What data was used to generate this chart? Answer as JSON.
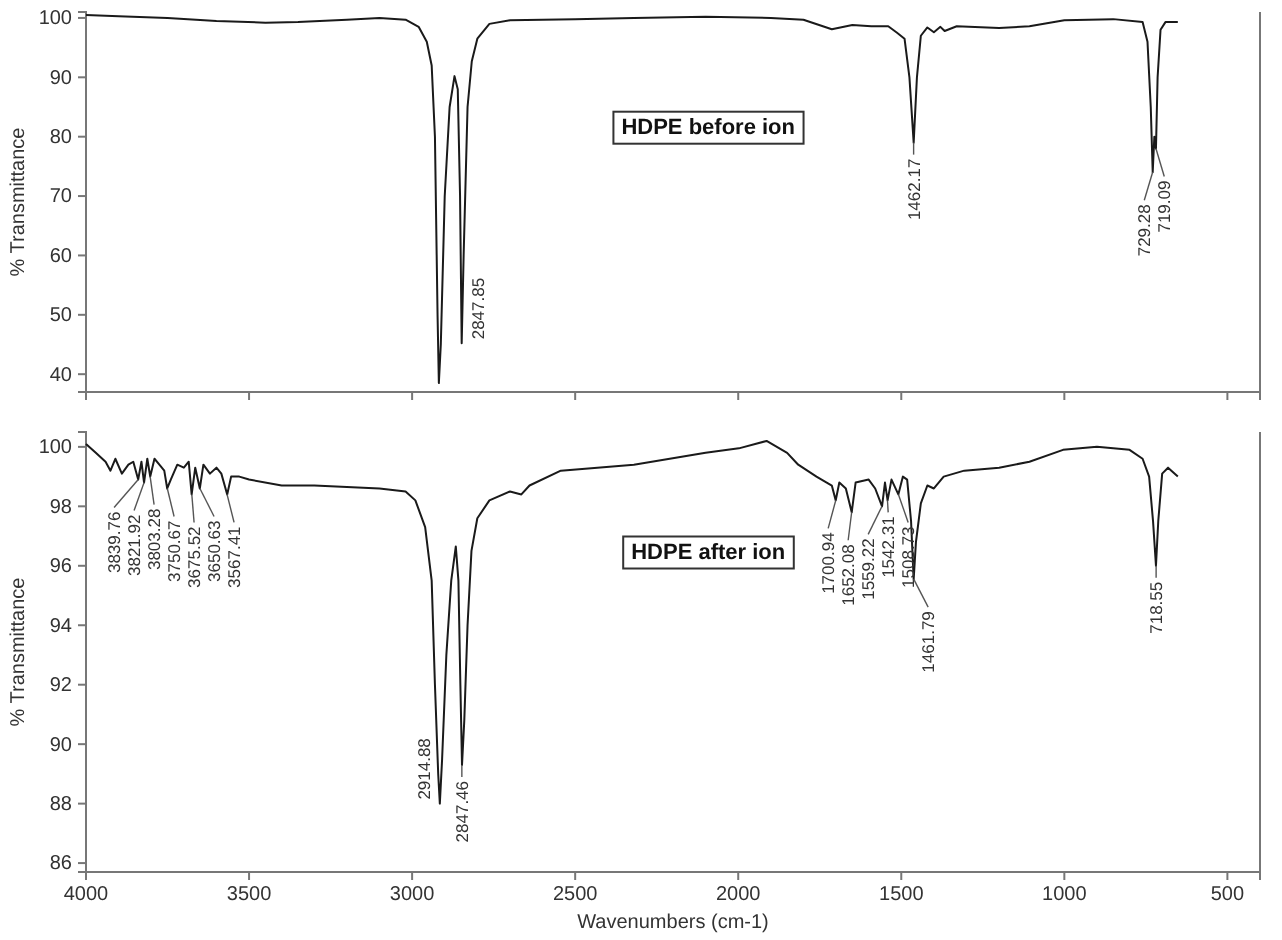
{
  "chart_data": [
    {
      "type": "line",
      "ylabel": "% Transmittance",
      "xlim": [
        4000,
        400
      ],
      "ylim": [
        37,
        101
      ],
      "xticks": [
        4000,
        3500,
        3000,
        2500,
        2000,
        1500,
        1000,
        500
      ],
      "yticks": [
        40,
        50,
        60,
        70,
        80,
        90,
        100
      ],
      "tick_labels": "y",
      "color": "#1a1a1a",
      "x": [
        4000,
        3900,
        3750,
        3600,
        3450,
        3350,
        3200,
        3100,
        3020,
        2980,
        2955,
        2940,
        2930,
        2922,
        2918,
        2912,
        2900,
        2885,
        2870,
        2860,
        2853,
        2848,
        2842,
        2830,
        2817,
        2800,
        2763,
        2700,
        2500,
        2320,
        2100,
        1900,
        1800,
        1713,
        1650,
        1592,
        1540,
        1513,
        1490,
        1475,
        1462,
        1452,
        1440,
        1420,
        1400,
        1380,
        1367,
        1330,
        1200,
        1107,
        1000,
        850,
        760,
        745,
        735,
        729,
        724,
        719,
        714,
        705,
        690,
        652
      ],
      "values": [
        100.5,
        100.3,
        100.0,
        99.5,
        99.2,
        99.3,
        99.7,
        100.0,
        99.7,
        98.5,
        96,
        92,
        80,
        50,
        38.5,
        45,
        70,
        85,
        90.2,
        88,
        70,
        45.2,
        60,
        85,
        92.7,
        96.5,
        99,
        99.6,
        99.8,
        100,
        100.2,
        100,
        99.7,
        98.1,
        98.8,
        98.6,
        98.6,
        97.5,
        96.5,
        90,
        79,
        90,
        97.0,
        98.4,
        97.6,
        98.5,
        97.8,
        98.6,
        98.3,
        98.6,
        99.6,
        99.8,
        99.3,
        96,
        85,
        74,
        80,
        78,
        90,
        98,
        99.3,
        99.3
      ],
      "annotations": [
        {
          "text": "2847.85",
          "x": 2847.85,
          "y": 45.2
        },
        {
          "text": "1462.17",
          "x": 1462.17,
          "y": 79
        },
        {
          "text": "729.28",
          "x": 729.28,
          "y": 74
        },
        {
          "text": "719.09",
          "x": 719.09,
          "y": 78
        },
        "HDPE before ion"
      ]
    },
    {
      "type": "line",
      "xlabel": "Wavenumbers (cm-1)",
      "ylabel": "% Transmittance",
      "xlim": [
        4000,
        400
      ],
      "ylim": [
        85.7,
        100.5
      ],
      "xticks": [
        4000,
        3500,
        3000,
        2500,
        2000,
        1500,
        1000,
        500
      ],
      "yticks": [
        86,
        88,
        90,
        92,
        94,
        96,
        98,
        100
      ],
      "color": "#1a1a1a",
      "x": [
        4000,
        3970,
        3940,
        3925,
        3910,
        3890,
        3870,
        3855,
        3840,
        3830,
        3822,
        3812,
        3803,
        3790,
        3775,
        3760,
        3751,
        3740,
        3720,
        3700,
        3685,
        3676,
        3665,
        3651,
        3640,
        3620,
        3600,
        3585,
        3567,
        3555,
        3530,
        3500,
        3400,
        3300,
        3100,
        3020,
        2990,
        2960,
        2940,
        2930,
        2920,
        2915,
        2908,
        2895,
        2880,
        2866,
        2858,
        2852,
        2847,
        2840,
        2830,
        2818,
        2800,
        2763,
        2700,
        2665,
        2640,
        2544,
        2320,
        2100,
        1998,
        1913,
        1850,
        1816,
        1760,
        1713,
        1701,
        1690,
        1670,
        1652,
        1640,
        1600,
        1580,
        1559,
        1550,
        1542,
        1530,
        1509,
        1495,
        1482,
        1470,
        1462,
        1455,
        1440,
        1420,
        1400,
        1370,
        1307,
        1200,
        1107,
        1004,
        900,
        800,
        760,
        740,
        728,
        719,
        712,
        700,
        682,
        652
      ],
      "values": [
        100.1,
        99.8,
        99.5,
        99.2,
        99.6,
        99.1,
        99.4,
        99.5,
        98.9,
        99.5,
        98.8,
        99.6,
        99.0,
        99.6,
        99.4,
        99.2,
        98.6,
        98.9,
        99.4,
        99.3,
        99.5,
        98.4,
        99.3,
        98.6,
        99.4,
        99.1,
        99.3,
        99.1,
        98.4,
        99.0,
        99.0,
        98.9,
        98.7,
        98.7,
        98.6,
        98.5,
        98.2,
        97.3,
        95.5,
        92,
        89,
        88.0,
        89.5,
        93,
        95.5,
        96.65,
        95.5,
        92,
        89.3,
        90.8,
        94,
        96.5,
        97.6,
        98.2,
        98.5,
        98.4,
        98.7,
        99.2,
        99.4,
        99.8,
        99.95,
        100.2,
        99.8,
        99.4,
        99.0,
        98.7,
        98.2,
        98.8,
        98.6,
        97.8,
        98.8,
        98.9,
        98.6,
        98.0,
        98.8,
        98.2,
        98.9,
        98.4,
        99.0,
        98.9,
        97.5,
        95.55,
        96.8,
        98.1,
        98.7,
        98.6,
        99.0,
        99.2,
        99.3,
        99.5,
        99.9,
        100.0,
        99.9,
        99.6,
        99.0,
        97.5,
        96.0,
        97.5,
        99.1,
        99.3,
        99.0
      ],
      "annotations": [
        {
          "text": "3839.76",
          "x": 3839.76,
          "y": 98.9
        },
        {
          "text": "3821.92",
          "x": 3821.92,
          "y": 98.8
        },
        {
          "text": "3803.28",
          "x": 3803.28,
          "y": 99.0
        },
        {
          "text": "3750.67",
          "x": 3750.67,
          "y": 98.6
        },
        {
          "text": "3675.52",
          "x": 3675.52,
          "y": 98.4
        },
        {
          "text": "3650.63",
          "x": 3650.63,
          "y": 98.6
        },
        {
          "text": "3567.41",
          "x": 3567.41,
          "y": 98.4
        },
        {
          "text": "2914.88",
          "x": 2914.88,
          "y": 88.0
        },
        {
          "text": "2847.46",
          "x": 2847.46,
          "y": 89.3
        },
        {
          "text": "1700.94",
          "x": 1700.94,
          "y": 98.2
        },
        {
          "text": "1652.08",
          "x": 1652.08,
          "y": 97.8
        },
        {
          "text": "1559.22",
          "x": 1559.22,
          "y": 98.0
        },
        {
          "text": "1542.31",
          "x": 1542.31,
          "y": 98.2
        },
        {
          "text": "1508.73",
          "x": 1508.73,
          "y": 98.4
        },
        {
          "text": "1461.79",
          "x": 1461.79,
          "y": 95.55
        },
        {
          "text": "718.55",
          "x": 718.55,
          "y": 96.0
        },
        "HDPE after ion"
      ]
    }
  ]
}
